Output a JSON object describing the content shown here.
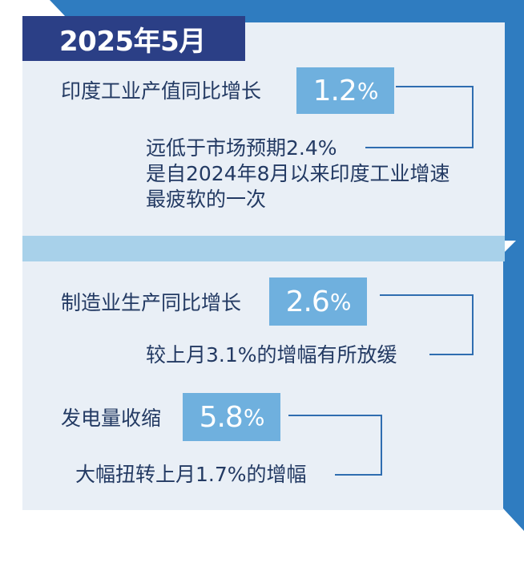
{
  "header": {
    "date": "2025年5月"
  },
  "section1": {
    "label": "印度工业产值同比增长",
    "value": "1.2",
    "unit": "%",
    "notes": [
      "远低于市场预期2.4%",
      "是自2024年8月以来印度工业增速",
      "最疲软的一次"
    ]
  },
  "section2": {
    "items": [
      {
        "label": "制造业生产同比增长",
        "value": "2.6",
        "unit": "%",
        "note": "较上月3.1%的增幅有所放缓"
      },
      {
        "label": "发电量收缩",
        "value": "5.8",
        "unit": "%",
        "note": "大幅扭转上月1.7%的增幅"
      }
    ]
  },
  "colors": {
    "dark_navy": "#2b3f86",
    "panel": "#e9eff6",
    "band": "#a8d1ea",
    "badge": "#6fb0de",
    "frame_blue": "#2f7cc0",
    "line": "#2f6db0"
  }
}
